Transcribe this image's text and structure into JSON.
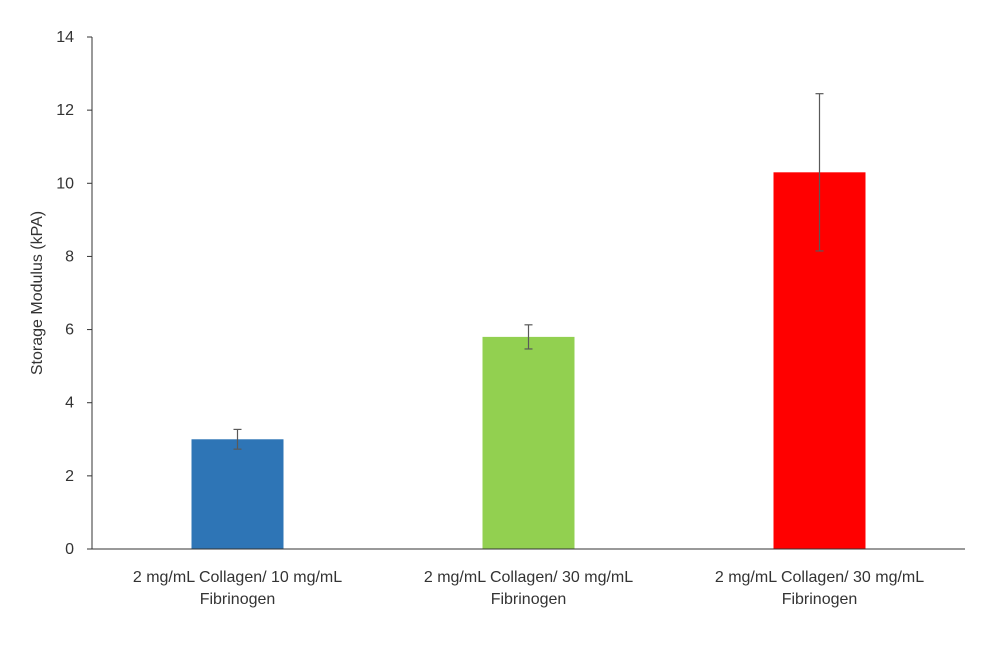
{
  "chart_data": {
    "type": "bar",
    "title": "",
    "xlabel": "",
    "ylabel": "Storage Modulus (kPA)",
    "ylim": [
      0,
      14
    ],
    "yticks": [
      0,
      2,
      4,
      6,
      8,
      10,
      12,
      14
    ],
    "grid": false,
    "legend": "none",
    "categories": [
      [
        "2 mg/mL Collagen/ 10 mg/mL",
        "Fibrinogen"
      ],
      [
        "2 mg/mL Collagen/ 30 mg/mL",
        "Fibrinogen"
      ],
      [
        "2 mg/mL Collagen/ 30 mg/mL",
        "Fibrinogen"
      ]
    ],
    "values": [
      3.0,
      5.8,
      10.3
    ],
    "error": [
      0.27,
      0.33,
      2.15
    ],
    "colors": [
      "#2E75B6",
      "#92D050",
      "#FF0000"
    ]
  }
}
